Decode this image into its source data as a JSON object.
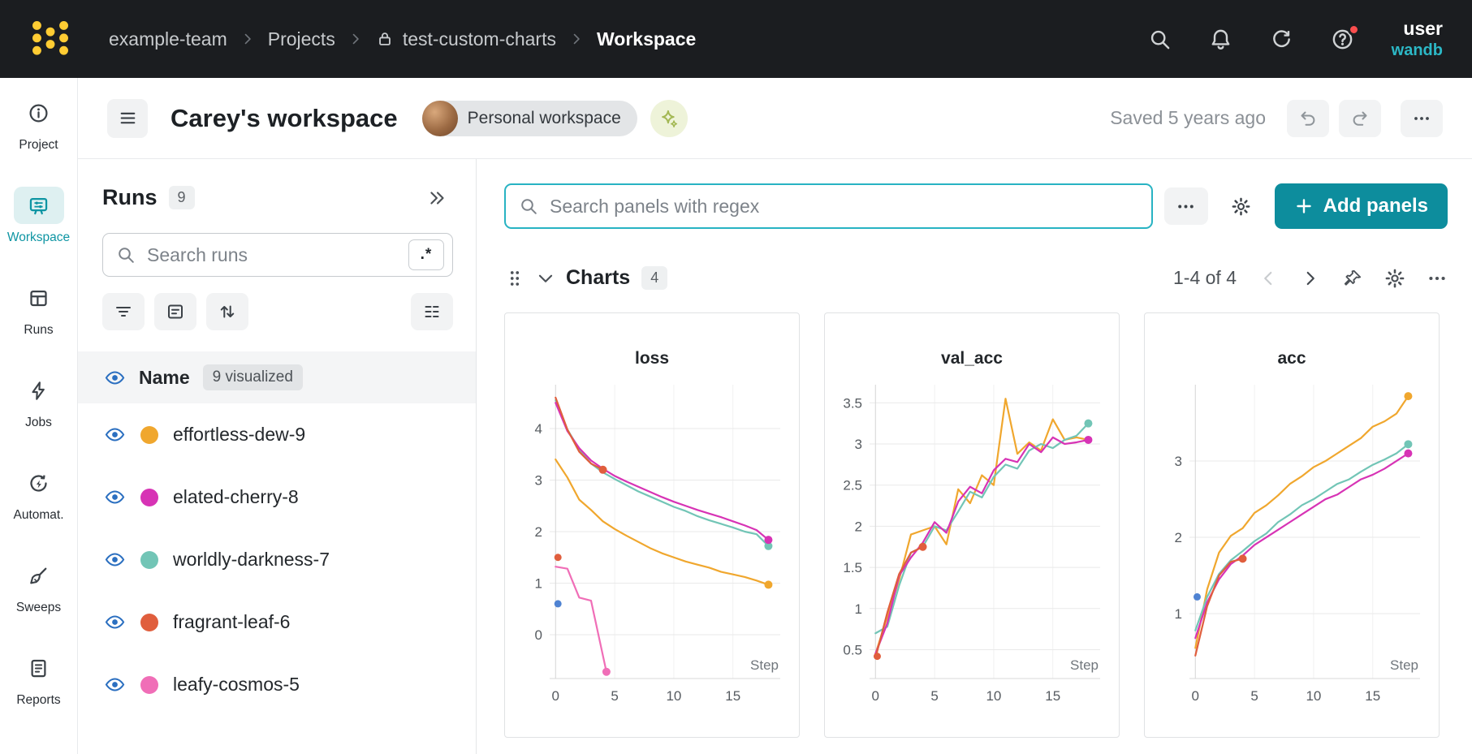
{
  "colors": {
    "accent_teal": "#0d8d9d",
    "accent_teal_bright": "#28b3c3",
    "topnav_bg": "#1b1d20",
    "logo_yellow": "#ffcc33",
    "eye_blue": "#2b6fc0",
    "notification_red": "#fb4e4e"
  },
  "icons": {
    "logo": "wandb-dots",
    "search-icon": "magnifier",
    "bell-icon": "bell",
    "refresh-icon": "circular-arrow",
    "help-icon": "question-circle",
    "lock-icon": "padlock",
    "breadcrumb-separator-icon": "chevron-right",
    "menu-icon": "hamburger-lines",
    "sparkle-icon": "four-point-star",
    "undo-icon": "curved-arrow-left",
    "redo-icon": "curved-arrow-right",
    "overflow-icon": "ellipsis",
    "collapse-icon": "double-chevron-right",
    "regex-toggle": ".*",
    "filter-icon": "filter-lines",
    "group-icon": "boxed-list",
    "sort-icon": "up-down-arrows",
    "columns-icon": "column-lines",
    "eye-icon": "visibility-eye",
    "drag-handle-icon": "grip-dots",
    "chevron-down-icon": "chevron-down",
    "pin-icon": "pushpin",
    "gear-icon": "settings-gear",
    "plus-icon": "plus"
  },
  "topnav": {
    "breadcrumb": [
      {
        "label": "example-team"
      },
      {
        "label": "Projects"
      },
      {
        "label": "test-custom-charts",
        "locked": true
      },
      {
        "label": "Workspace",
        "current": true
      }
    ],
    "user_label": "user",
    "brand_label": "wandb"
  },
  "sidebar": {
    "items": [
      {
        "label": "Project",
        "icon": "info"
      },
      {
        "label": "Workspace",
        "icon": "workspace",
        "active": true
      },
      {
        "label": "Runs",
        "icon": "runs-table"
      },
      {
        "label": "Jobs",
        "icon": "lightning"
      },
      {
        "label": "Automat.",
        "icon": "automations"
      },
      {
        "label": "Sweeps",
        "icon": "broom"
      },
      {
        "label": "Reports",
        "icon": "report"
      }
    ]
  },
  "header": {
    "title": "Carey's workspace",
    "workspace_badge": "Personal workspace",
    "saved_status": "Saved 5 years ago"
  },
  "runs_panel": {
    "title": "Runs",
    "count": "9",
    "search_placeholder": "Search runs",
    "regex_button": ".*",
    "name_column": "Name",
    "visualized_badge": "9 visualized",
    "runs": [
      {
        "name": "effortless-dew-9",
        "color": "#f0a72e"
      },
      {
        "name": "elated-cherry-8",
        "color": "#d733b5"
      },
      {
        "name": "worldly-darkness-7",
        "color": "#72c5b6"
      },
      {
        "name": "fragrant-leaf-6",
        "color": "#e05e3d"
      },
      {
        "name": "leafy-cosmos-5",
        "color": "#f06eb7"
      }
    ]
  },
  "panels_toolbar": {
    "search_placeholder": "Search panels with regex",
    "add_panels_label": "Add panels"
  },
  "charts_section": {
    "title": "Charts",
    "count": "4",
    "pagination": "1-4 of 4"
  },
  "chart_data": [
    {
      "type": "line",
      "title": "loss",
      "xlabel": "Step",
      "xlim": [
        -0.5,
        19
      ],
      "ylim": [
        -0.85,
        4.85
      ],
      "xticks": [
        0,
        5,
        10,
        15
      ],
      "yticks": [
        0,
        1,
        2,
        3,
        4
      ],
      "series": [
        {
          "name": "effortless-dew-9",
          "color": "#f0a72e",
          "end_dot": true,
          "values": [
            3.4,
            3.05,
            2.62,
            2.42,
            2.2,
            2.05,
            1.92,
            1.8,
            1.68,
            1.58,
            1.5,
            1.42,
            1.36,
            1.3,
            1.22,
            1.17,
            1.12,
            1.05,
            0.97
          ]
        },
        {
          "name": "worldly-darkness-7",
          "color": "#72c5b6",
          "end_dot": true,
          "values": [
            4.55,
            3.98,
            3.6,
            3.32,
            3.15,
            3.02,
            2.9,
            2.78,
            2.68,
            2.58,
            2.48,
            2.4,
            2.3,
            2.22,
            2.15,
            2.08,
            2.0,
            1.95,
            1.72
          ]
        },
        {
          "name": "elated-cherry-8",
          "color": "#d733b5",
          "end_dot": true,
          "values": [
            4.5,
            3.95,
            3.62,
            3.38,
            3.22,
            3.08,
            2.97,
            2.87,
            2.77,
            2.67,
            2.58,
            2.5,
            2.42,
            2.35,
            2.28,
            2.2,
            2.12,
            2.03,
            1.84
          ]
        },
        {
          "name": "fragrant-leaf-6",
          "color": "#e05e3d",
          "end_dot": true,
          "x": [
            0,
            1,
            2,
            3,
            4
          ],
          "values": [
            4.6,
            3.98,
            3.55,
            3.32,
            3.2
          ]
        },
        {
          "name": "leafy-cosmos-5",
          "color": "#f06eb7",
          "end_dot": true,
          "x": [
            0,
            1,
            2,
            3,
            4.3
          ],
          "values": [
            1.32,
            1.28,
            0.72,
            0.66,
            -0.72
          ]
        }
      ],
      "points": [
        {
          "color": "#4f83d2",
          "x": 0.2,
          "y": 0.6
        },
        {
          "color": "#e05e3d",
          "x": 0.2,
          "y": 1.5
        }
      ]
    },
    {
      "type": "line",
      "title": "val_acc",
      "xlabel": "Step",
      "xlim": [
        -0.5,
        19
      ],
      "ylim": [
        0.15,
        3.72
      ],
      "xticks": [
        0,
        5,
        10,
        15
      ],
      "yticks": [
        0.5,
        1,
        1.5,
        2,
        2.5,
        3,
        3.5
      ],
      "series": [
        {
          "name": "effortless-dew-9",
          "color": "#f0a72e",
          "end_dot": false,
          "values": [
            0.45,
            0.9,
            1.35,
            1.9,
            1.95,
            2.0,
            1.78,
            2.45,
            2.28,
            2.62,
            2.5,
            3.55,
            2.88,
            3.02,
            2.92,
            3.3,
            3.05,
            3.08,
            3.05
          ]
        },
        {
          "name": "worldly-darkness-7",
          "color": "#72c5b6",
          "end_dot": true,
          "values": [
            0.7,
            0.78,
            1.28,
            1.68,
            1.75,
            2.0,
            1.95,
            2.18,
            2.42,
            2.35,
            2.6,
            2.75,
            2.7,
            2.92,
            3.0,
            2.95,
            3.05,
            3.1,
            3.25
          ]
        },
        {
          "name": "elated-cherry-8",
          "color": "#d733b5",
          "end_dot": true,
          "values": [
            0.45,
            0.82,
            1.4,
            1.62,
            1.8,
            2.05,
            1.92,
            2.3,
            2.48,
            2.4,
            2.68,
            2.82,
            2.78,
            3.0,
            2.9,
            3.08,
            3.0,
            3.02,
            3.05
          ]
        },
        {
          "name": "fragrant-leaf-6",
          "color": "#e05e3d",
          "end_dot": true,
          "x": [
            0,
            1,
            2,
            3,
            4
          ],
          "values": [
            0.4,
            0.95,
            1.42,
            1.68,
            1.75
          ]
        }
      ],
      "points": [
        {
          "color": "#e05e3d",
          "x": 0.15,
          "y": 0.42
        }
      ]
    },
    {
      "type": "line",
      "title": "acc",
      "xlabel": "Step",
      "xlim": [
        -0.5,
        19
      ],
      "ylim": [
        0.15,
        4.0
      ],
      "xticks": [
        0,
        5,
        10,
        15
      ],
      "yticks": [
        1,
        2,
        3
      ],
      "series": [
        {
          "name": "effortless-dew-9",
          "color": "#f0a72e",
          "end_dot": true,
          "values": [
            0.55,
            1.32,
            1.8,
            2.02,
            2.12,
            2.32,
            2.42,
            2.55,
            2.7,
            2.8,
            2.92,
            3.0,
            3.1,
            3.2,
            3.3,
            3.45,
            3.52,
            3.62,
            3.85
          ]
        },
        {
          "name": "worldly-darkness-7",
          "color": "#72c5b6",
          "end_dot": true,
          "values": [
            0.78,
            1.22,
            1.52,
            1.7,
            1.82,
            1.95,
            2.05,
            2.2,
            2.3,
            2.42,
            2.5,
            2.6,
            2.7,
            2.76,
            2.86,
            2.95,
            3.02,
            3.1,
            3.22
          ]
        },
        {
          "name": "elated-cherry-8",
          "color": "#d733b5",
          "end_dot": true,
          "values": [
            0.68,
            1.15,
            1.45,
            1.65,
            1.76,
            1.9,
            2.0,
            2.1,
            2.2,
            2.3,
            2.4,
            2.5,
            2.56,
            2.66,
            2.76,
            2.82,
            2.9,
            3.0,
            3.1
          ]
        },
        {
          "name": "fragrant-leaf-6",
          "color": "#e05e3d",
          "end_dot": true,
          "x": [
            0,
            1,
            2,
            3,
            4
          ],
          "values": [
            0.45,
            1.1,
            1.5,
            1.68,
            1.72
          ]
        }
      ],
      "points": [
        {
          "color": "#4f83d2",
          "x": 0.15,
          "y": 1.22
        }
      ]
    }
  ]
}
